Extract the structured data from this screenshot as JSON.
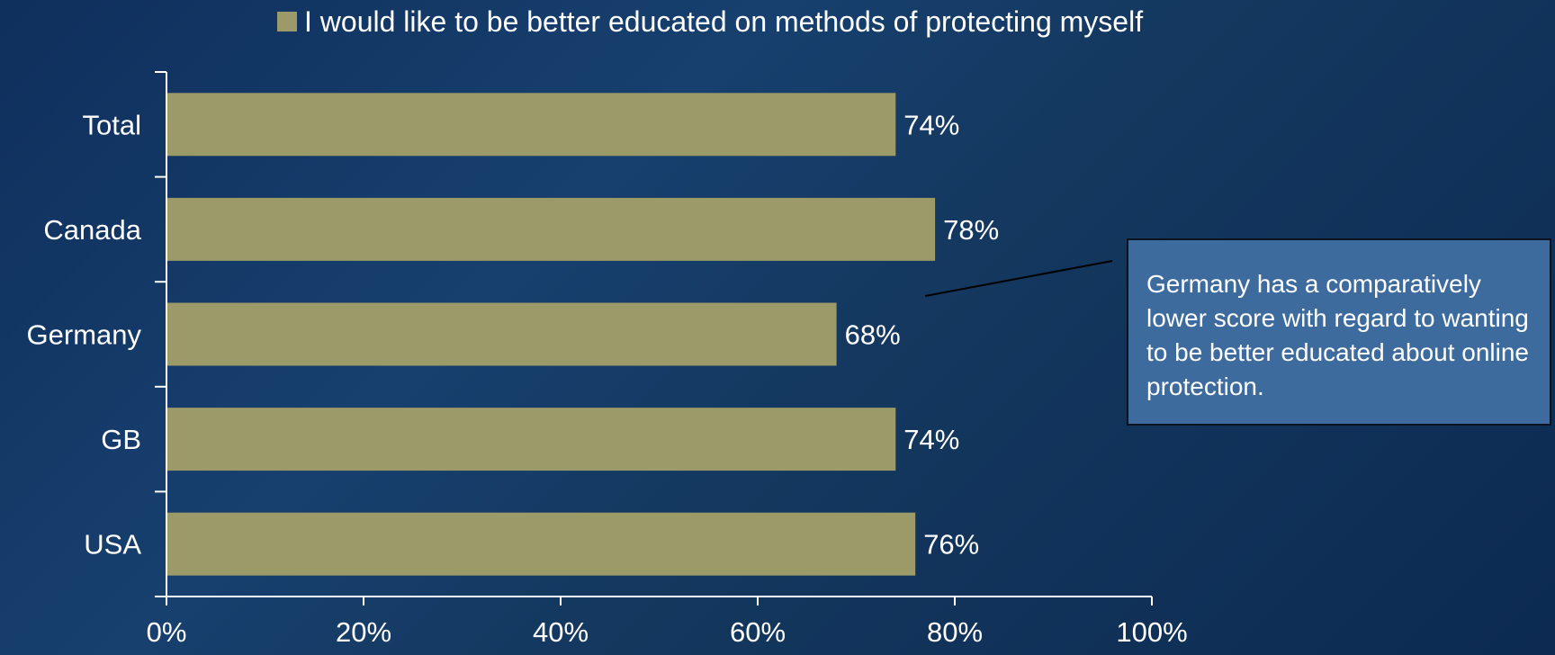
{
  "colors": {
    "bar": "#9c9a68",
    "axis": "#ffffff",
    "text": "#ffffff",
    "callout_fill": "#3d6b9e",
    "callout_border": "#0b1220"
  },
  "legend": {
    "label": "I would like to be better educated on methods of protecting myself"
  },
  "callout": {
    "text": "Germany has a comparatively lower score with regard to wanting to be better educated about online protection."
  },
  "chart_data": {
    "type": "bar",
    "orientation": "horizontal",
    "categories": [
      "Total",
      "Canada",
      "Germany",
      "GB",
      "USA"
    ],
    "values": [
      74,
      78,
      68,
      74,
      76
    ],
    "value_labels": [
      "74%",
      "78%",
      "68%",
      "74%",
      "76%"
    ],
    "series": [
      {
        "name": "I would like to be better educated on methods of protecting myself",
        "values": [
          74,
          78,
          68,
          74,
          76
        ]
      }
    ],
    "x_ticks": [
      0,
      20,
      40,
      60,
      80,
      100
    ],
    "x_tick_labels": [
      "0%",
      "20%",
      "40%",
      "60%",
      "80%",
      "100%"
    ],
    "xlim": [
      0,
      100
    ],
    "title": "",
    "xlabel": "",
    "ylabel": "",
    "grid": false,
    "legend_position": "top"
  }
}
